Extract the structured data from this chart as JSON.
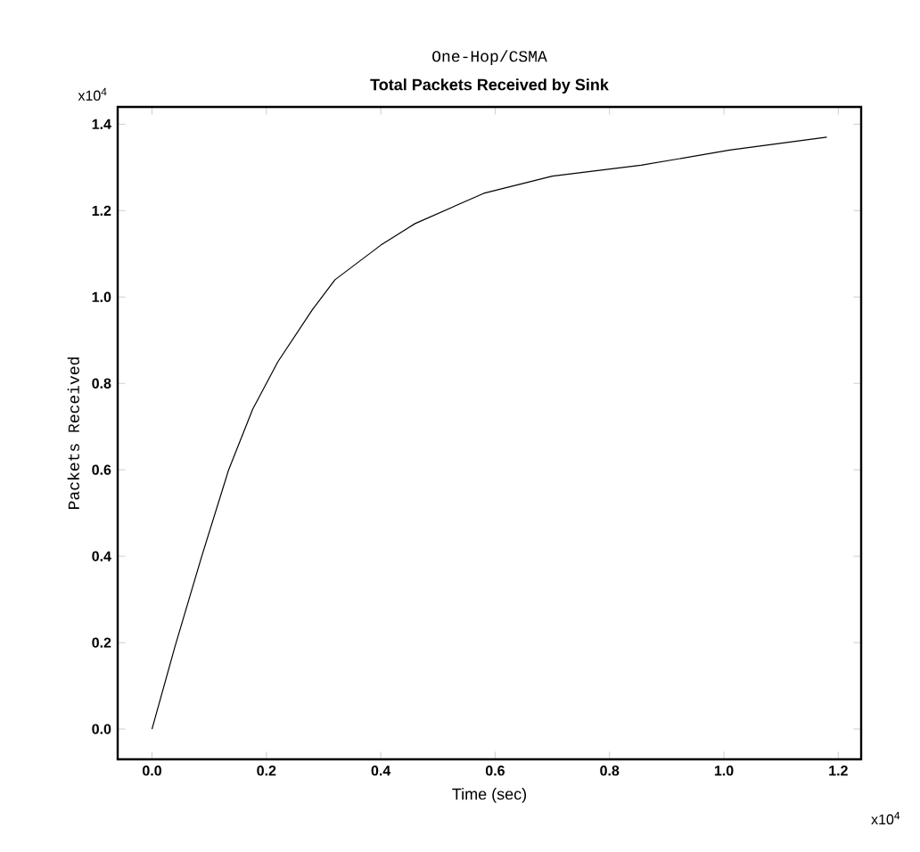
{
  "chart_data": {
    "type": "line",
    "title": "One-Hop/CSMA",
    "subtitle": "Total Packets Received by Sink",
    "xlabel": "Time (sec)",
    "ylabel": "Packets Received",
    "annotations": [
      "x10$^{4}$",
      "x10$^{4}$"
    ],
    "x": [
      0,
      0.04,
      0.087,
      0.134,
      0.176,
      0.22,
      0.28,
      0.32,
      0.4,
      0.46,
      0.58,
      0.7,
      0.855,
      1.01,
      1.18
    ],
    "series": [
      {
        "color": "#000000",
        "values": [
          0,
          0.19,
          0.4,
          0.6,
          0.74,
          0.85,
          0.97,
          1.04,
          1.12,
          1.17,
          1.24,
          1.28,
          1.305,
          1.34,
          1.37
        ]
      }
    ],
    "xlim": [
      -0.06,
      1.24
    ],
    "ylim": [
      -0.07,
      1.44
    ],
    "xticks": [
      {
        "value": 0,
        "label": "0.0"
      },
      0.2,
      0.4,
      0.6,
      0.8,
      {
        "value": 1,
        "label": "1.0"
      },
      1.2
    ],
    "yticks": [
      {
        "value": 0,
        "label": "0.0"
      },
      0.2,
      0.4,
      0.6,
      0.8,
      {
        "value": 1,
        "label": "1.0"
      },
      1.2,
      1.4
    ],
    "grid": false,
    "marker": "none",
    "line_style": "solid"
  }
}
